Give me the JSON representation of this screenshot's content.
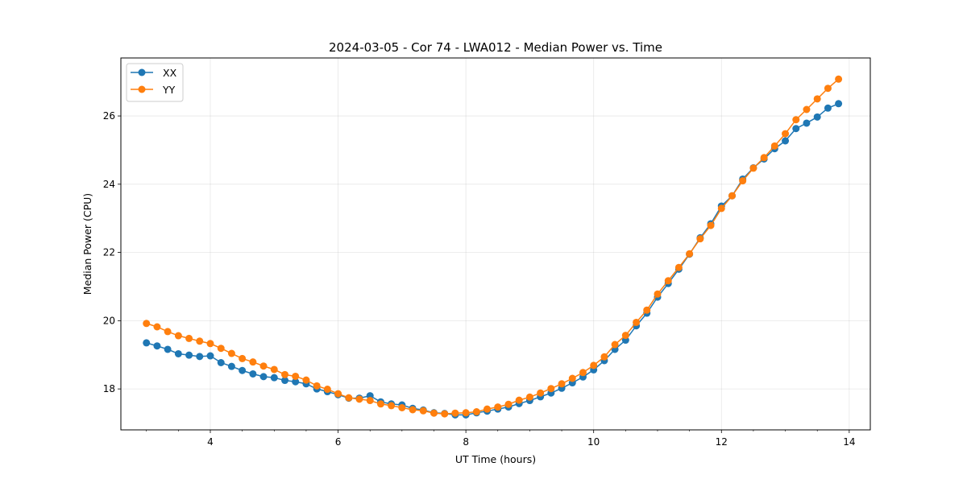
{
  "chart_data": {
    "type": "line",
    "title": "2024-03-05 - Cor 74 - LWA012 - Median Power vs. Time",
    "xlabel": "UT Time (hours)",
    "ylabel": "Median Power (CPU)",
    "xlim": [
      2.6,
      14.33
    ],
    "ylim": [
      16.8,
      27.7
    ],
    "xticks": [
      4,
      6,
      8,
      10,
      12,
      14
    ],
    "xtick_labels": [
      "4",
      "6",
      "8",
      "10",
      "12",
      "14"
    ],
    "yticks": [
      18,
      20,
      22,
      24,
      26
    ],
    "ytick_labels": [
      "18",
      "20",
      "22",
      "24",
      "26"
    ],
    "grid": true,
    "legend_position": "top-left",
    "x": [
      3.0,
      3.167,
      3.333,
      3.5,
      3.667,
      3.833,
      4.0,
      4.167,
      4.333,
      4.5,
      4.667,
      4.833,
      5.0,
      5.167,
      5.333,
      5.5,
      5.667,
      5.833,
      6.0,
      6.167,
      6.333,
      6.5,
      6.667,
      6.833,
      7.0,
      7.167,
      7.333,
      7.5,
      7.667,
      7.833,
      8.0,
      8.167,
      8.333,
      8.5,
      8.667,
      8.833,
      9.0,
      9.167,
      9.333,
      9.5,
      9.667,
      9.833,
      10.0,
      10.167,
      10.333,
      10.5,
      10.667,
      10.833,
      11.0,
      11.167,
      11.333,
      11.5,
      11.667,
      11.833,
      12.0,
      12.167,
      12.333,
      12.5,
      12.667,
      12.833,
      13.0,
      13.167,
      13.333,
      13.5,
      13.667,
      13.833
    ],
    "series": [
      {
        "name": "XX",
        "color": "#1f77b4",
        "values": [
          19.35,
          19.26,
          19.16,
          19.03,
          18.99,
          18.95,
          18.97,
          18.77,
          18.66,
          18.54,
          18.44,
          18.36,
          18.33,
          18.25,
          18.21,
          18.15,
          18.0,
          17.92,
          17.83,
          17.73,
          17.73,
          17.8,
          17.62,
          17.56,
          17.53,
          17.43,
          17.38,
          17.3,
          17.28,
          17.24,
          17.24,
          17.3,
          17.35,
          17.41,
          17.47,
          17.57,
          17.66,
          17.77,
          17.88,
          18.02,
          18.18,
          18.35,
          18.56,
          18.83,
          19.16,
          19.43,
          19.85,
          20.22,
          20.69,
          21.09,
          21.51,
          21.95,
          22.43,
          22.84,
          23.36,
          23.66,
          24.15,
          24.48,
          24.74,
          25.04,
          25.27,
          25.63,
          25.79,
          25.97,
          26.23,
          26.36
        ]
      },
      {
        "name": "YY",
        "color": "#ff7f0e",
        "values": [
          19.92,
          19.82,
          19.68,
          19.56,
          19.48,
          19.4,
          19.33,
          19.19,
          19.04,
          18.89,
          18.79,
          18.67,
          18.57,
          18.42,
          18.37,
          18.26,
          18.09,
          17.99,
          17.86,
          17.74,
          17.7,
          17.66,
          17.56,
          17.51,
          17.45,
          17.39,
          17.36,
          17.29,
          17.27,
          17.29,
          17.3,
          17.33,
          17.41,
          17.47,
          17.55,
          17.67,
          17.76,
          17.88,
          18.01,
          18.15,
          18.31,
          18.48,
          18.69,
          18.94,
          19.3,
          19.57,
          19.95,
          20.31,
          20.78,
          21.17,
          21.56,
          21.96,
          22.4,
          22.79,
          23.29,
          23.66,
          24.1,
          24.47,
          24.78,
          25.12,
          25.48,
          25.89,
          26.19,
          26.5,
          26.81,
          27.08
        ]
      }
    ]
  }
}
